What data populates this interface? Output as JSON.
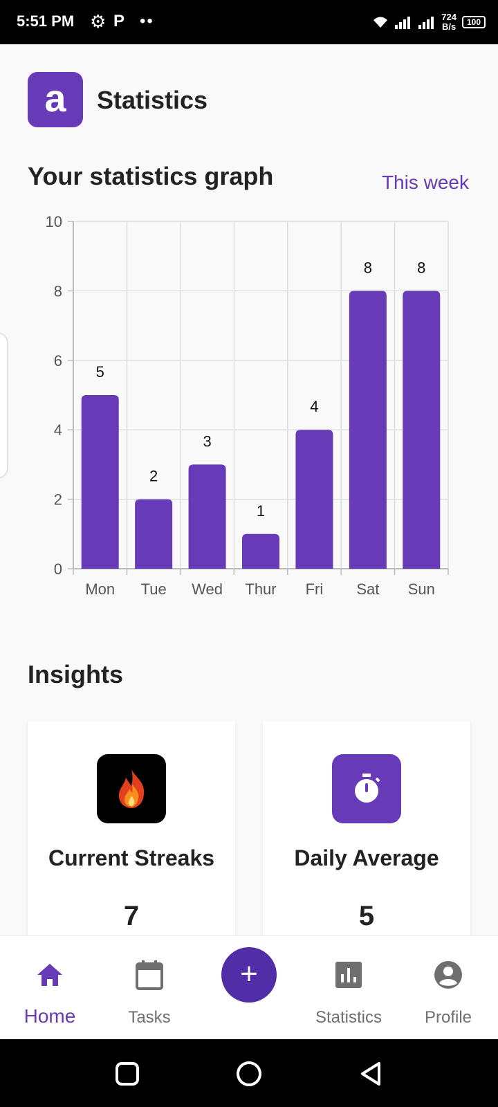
{
  "status_bar": {
    "time": "5:51 PM",
    "net_speed_value": "724",
    "net_speed_unit": "B/s",
    "battery": "100"
  },
  "app": {
    "title": "Statistics",
    "logo_letter": "a"
  },
  "graph": {
    "title": "Your statistics graph",
    "range_label": "This week"
  },
  "chart_data": {
    "type": "bar",
    "categories": [
      "Mon",
      "Tue",
      "Wed",
      "Thur",
      "Fri",
      "Sat",
      "Sun"
    ],
    "values": [
      5,
      2,
      3,
      1,
      4,
      8,
      8
    ],
    "ylim": [
      0,
      10
    ],
    "yticks": [
      0,
      2,
      4,
      6,
      8,
      10
    ],
    "grid": true,
    "data_labels": true,
    "bar_color": "#673ab7"
  },
  "insights": {
    "title": "Insights",
    "cards": [
      {
        "label": "Current Streaks",
        "value": "7",
        "icon": "fire-icon"
      },
      {
        "label": "Daily Average",
        "value": "5",
        "icon": "stopwatch-icon"
      }
    ]
  },
  "nav": {
    "home": "Home",
    "tasks": "Tasks",
    "add": "+",
    "statistics": "Statistics",
    "profile": "Profile"
  },
  "colors": {
    "accent": "#673ab7",
    "fab": "#512da8",
    "inactive": "#6f6f6f"
  }
}
